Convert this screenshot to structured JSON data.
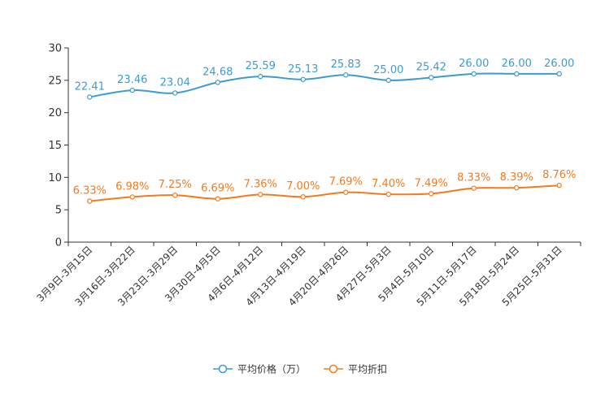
{
  "chart_data": {
    "type": "line",
    "title": "",
    "xlabel": "",
    "ylabel": "",
    "ylim": [
      0,
      30
    ],
    "yticks": [
      "0",
      "5",
      "10",
      "15",
      "20",
      "25",
      "30"
    ],
    "categories": [
      "3月9日-3月15日",
      "3月16日-3月22日",
      "3月23日-3月29日",
      "3月30日-4月5日",
      "4月6日-4月12日",
      "4月13日-4月19日",
      "4月20日-4月26日",
      "4月27日-5月3日",
      "5月4日-5月10日",
      "5月11日-5月17日",
      "5月18日-5月24日",
      "5月25日-5月31日"
    ],
    "series": [
      {
        "name": "平均价格（万）",
        "color": "#3d9bd0",
        "values": [
          22.41,
          23.46,
          23.04,
          24.68,
          25.59,
          25.13,
          25.83,
          25.0,
          25.42,
          26.0,
          26.0,
          26.0
        ],
        "labels": [
          "22.41",
          "23.46",
          "23.04",
          "24.68",
          "25.59",
          "25.13",
          "25.83",
          "25.00",
          "25.42",
          "26.00",
          "26.00",
          "26.00"
        ]
      },
      {
        "name": "平均折扣",
        "color": "#f47a1f",
        "values": [
          6.33,
          6.98,
          7.25,
          6.69,
          7.36,
          7.0,
          7.69,
          7.4,
          7.49,
          8.33,
          8.39,
          8.76
        ],
        "labels": [
          "6.33%",
          "6.98%",
          "7.25%",
          "6.69%",
          "7.36%",
          "7.00%",
          "7.69%",
          "7.40%",
          "7.49%",
          "8.33%",
          "8.39%",
          "8.76%"
        ]
      }
    ],
    "legend_position": "bottom-center",
    "grid": false
  }
}
